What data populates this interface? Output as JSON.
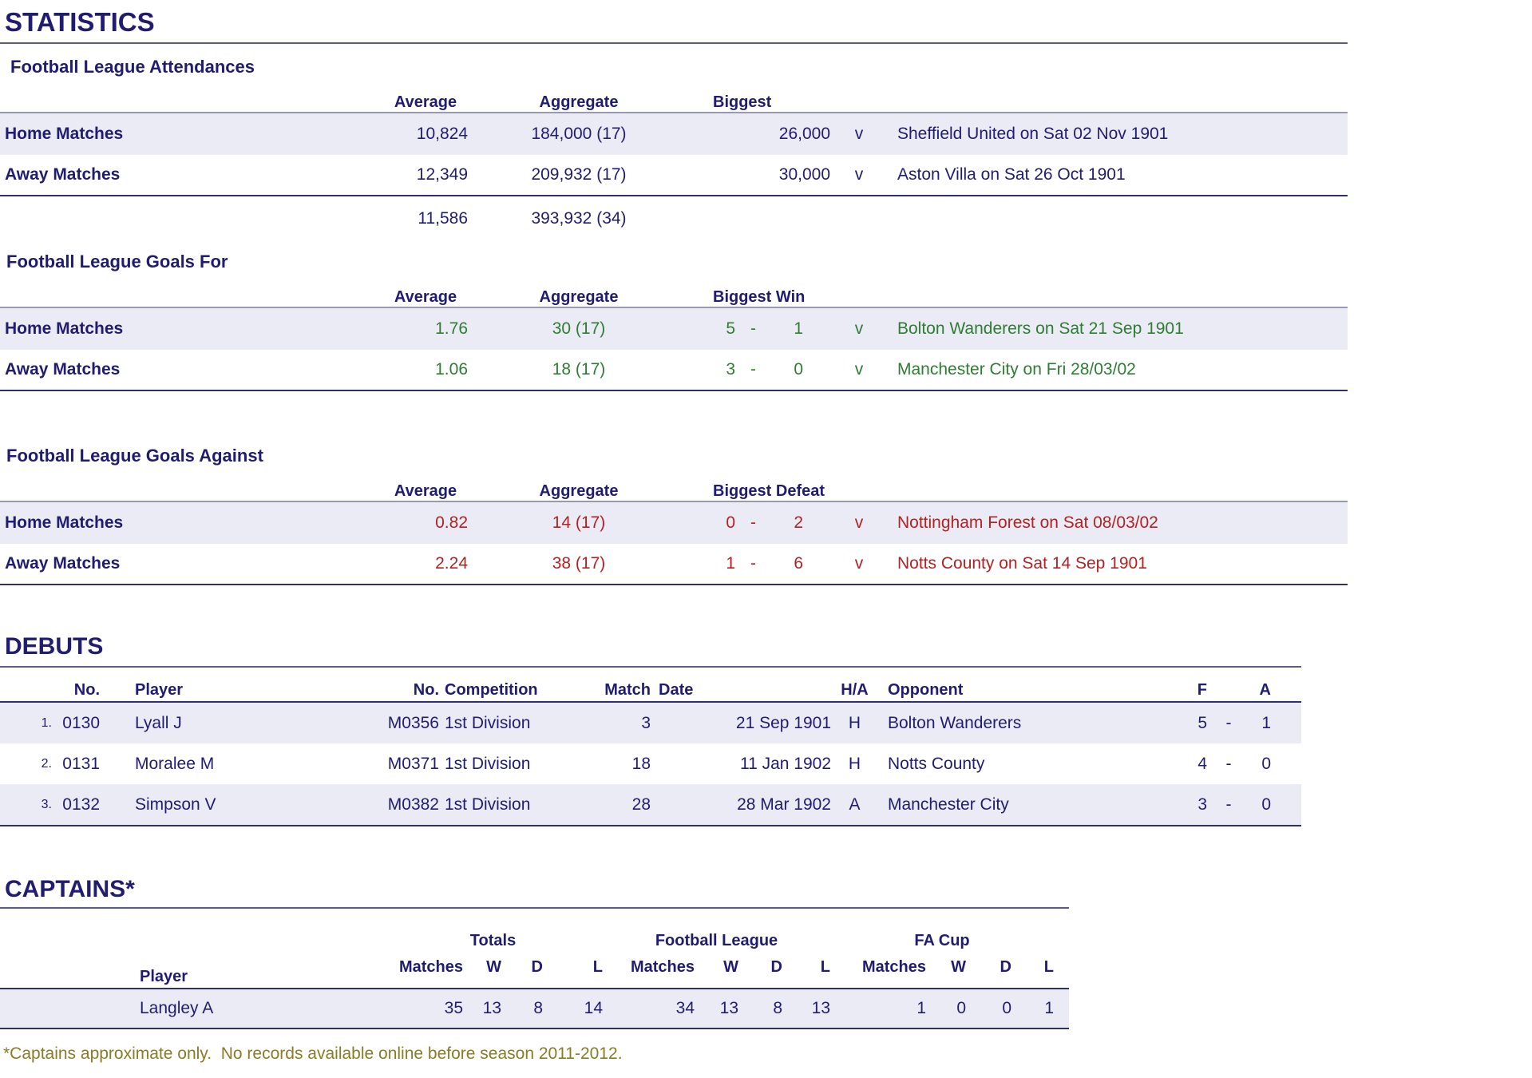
{
  "page": {
    "title": "STATISTICS"
  },
  "colors": {
    "navy": "#201C70",
    "green": "#2E7D32",
    "red": "#B22222",
    "olive": "#8A7B25",
    "row_shade": "#EBEBF6"
  },
  "attendances": {
    "heading": "Football League Attendances",
    "columns": {
      "average": "Average",
      "aggregate": "Aggregate",
      "biggest": "Biggest"
    },
    "rows": [
      {
        "label": "Home Matches",
        "average": "10,824",
        "aggregate": "184,000 (17)",
        "biggest": "26,000",
        "v": "v",
        "opponent": "Sheffield United on Sat 02 Nov 1901"
      },
      {
        "label": "Away Matches",
        "average": "12,349",
        "aggregate": "209,932 (17)",
        "biggest": "30,000",
        "v": "v",
        "opponent": "Aston Villa on Sat 26 Oct 1901"
      }
    ],
    "totals": {
      "average": "11,586",
      "aggregate": "393,932 (34)"
    }
  },
  "goals_for": {
    "heading": "Football League Goals For",
    "columns": {
      "average": "Average",
      "aggregate": "Aggregate",
      "biggest": "Biggest Win"
    },
    "rows": [
      {
        "label": "Home Matches",
        "average": "1.76",
        "aggregate": "30 (17)",
        "score1": "5",
        "dash": "-",
        "score2": "1",
        "v": "v",
        "opponent": "Bolton Wanderers on Sat 21 Sep 1901"
      },
      {
        "label": "Away Matches",
        "average": "1.06",
        "aggregate": "18 (17)",
        "score1": "3",
        "dash": "-",
        "score2": "0",
        "v": "v",
        "opponent": "Manchester City on Fri 28/03/02"
      }
    ]
  },
  "goals_against": {
    "heading": "Football League Goals Against",
    "columns": {
      "average": "Average",
      "aggregate": "Aggregate",
      "biggest": "Biggest Defeat"
    },
    "rows": [
      {
        "label": "Home Matches",
        "average": "0.82",
        "aggregate": "14 (17)",
        "score1": "0",
        "dash": "-",
        "score2": "2",
        "v": "v",
        "opponent": "Nottingham Forest on Sat 08/03/02"
      },
      {
        "label": "Away Matches",
        "average": "2.24",
        "aggregate": "38 (17)",
        "score1": "1",
        "dash": "-",
        "score2": "6",
        "v": "v",
        "opponent": "Notts County on Sat 14 Sep 1901"
      }
    ]
  },
  "debuts": {
    "heading": "DEBUTS",
    "columns": {
      "no": "No.",
      "player": "Player",
      "match_no": "No.",
      "competition": "Competition",
      "match": "Match",
      "date": "Date",
      "ha": "H/A",
      "opponent": "Opponent",
      "f": "F",
      "a": "A"
    },
    "rows": [
      {
        "idx": "1.",
        "no": "0130",
        "player": "Lyall J",
        "match_no": "M0356",
        "competition": "1st Division",
        "match": "3",
        "date": "21 Sep 1901",
        "ha": "H",
        "opponent": "Bolton Wanderers",
        "f": "5",
        "dash": "-",
        "a": "1"
      },
      {
        "idx": "2.",
        "no": "0131",
        "player": "Moralee M",
        "match_no": "M0371",
        "competition": "1st Division",
        "match": "18",
        "date": "11 Jan 1902",
        "ha": "H",
        "opponent": "Notts County",
        "f": "4",
        "dash": "-",
        "a": "0"
      },
      {
        "idx": "3.",
        "no": "0132",
        "player": "Simpson V",
        "match_no": "M0382",
        "competition": "1st Division",
        "match": "28",
        "date": "28 Mar 1902",
        "ha": "A",
        "opponent": "Manchester City",
        "f": "3",
        "dash": "-",
        "a": "0"
      }
    ]
  },
  "captains": {
    "heading": "CAPTAINS*",
    "groups": {
      "totals": "Totals",
      "football_league": "Football League",
      "fa_cup": "FA Cup"
    },
    "columns": {
      "player": "Player",
      "matches": "Matches",
      "w": "W",
      "d": "D",
      "l": "L"
    },
    "rows": [
      {
        "player": "Langley A",
        "totals": {
          "matches": "35",
          "w": "13",
          "d": "8",
          "l": "14"
        },
        "football_league": {
          "matches": "34",
          "w": "13",
          "d": "8",
          "l": "13"
        },
        "fa_cup": {
          "matches": "1",
          "w": "0",
          "d": "0",
          "l": "1"
        }
      }
    ],
    "footnote": "*Captains approximate only.  No records available online before season 2011-2012."
  }
}
